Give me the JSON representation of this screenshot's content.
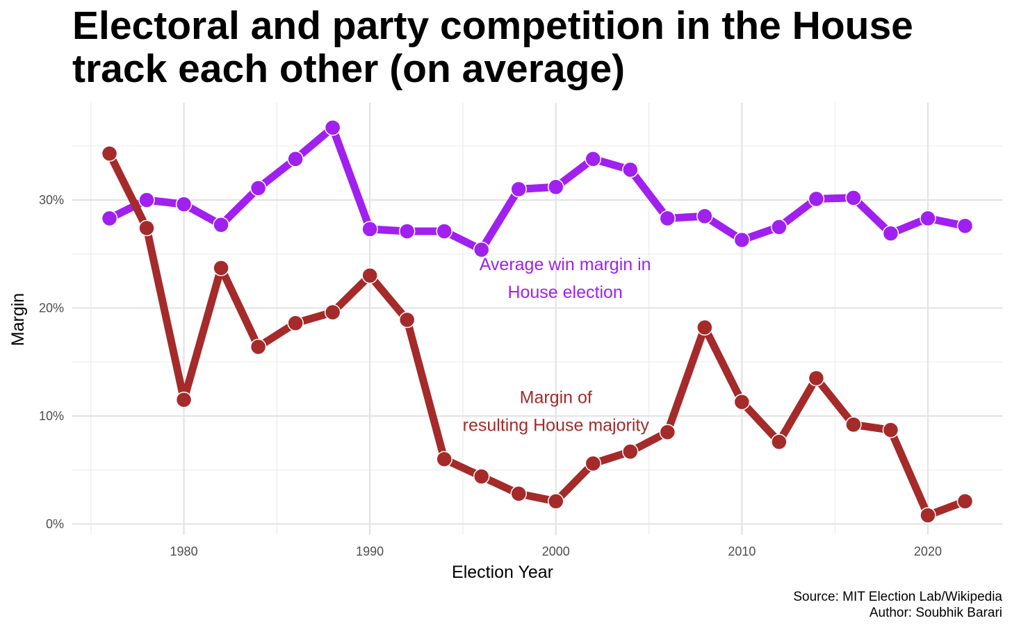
{
  "chart_data": {
    "type": "line",
    "title": "Electoral and party competition in the House track each other (on average)",
    "xlabel": "Election Year",
    "ylabel": "Margin",
    "xlim": [
      1974,
      2024
    ],
    "ylim": [
      -1,
      39
    ],
    "x_ticks": [
      1980,
      1990,
      2000,
      2010,
      2020
    ],
    "x_tick_labels": [
      "1980",
      "1990",
      "2000",
      "2010",
      "2020"
    ],
    "y_ticks": [
      0,
      10,
      20,
      30
    ],
    "y_tick_labels": [
      "0%",
      "10%",
      "20%",
      "30%"
    ],
    "grid": true,
    "legend": "none",
    "x": [
      1976,
      1978,
      1980,
      1982,
      1984,
      1986,
      1988,
      1990,
      1992,
      1994,
      1996,
      1998,
      2000,
      2002,
      2004,
      2006,
      2008,
      2010,
      2012,
      2014,
      2016,
      2018,
      2020,
      2022
    ],
    "series": [
      {
        "key": "win_margin",
        "color": "#A020F0",
        "values": [
          28.3,
          30.0,
          29.6,
          27.7,
          31.1,
          33.8,
          36.7,
          27.3,
          27.1,
          27.1,
          25.4,
          31.0,
          31.2,
          33.8,
          32.8,
          28.3,
          28.5,
          26.3,
          27.5,
          30.1,
          30.2,
          26.9,
          28.3,
          27.6
        ]
      },
      {
        "key": "majority_margin",
        "color": "#A52A2A",
        "values": [
          34.3,
          27.4,
          11.5,
          23.7,
          16.4,
          18.6,
          19.6,
          23.0,
          18.9,
          6.0,
          4.4,
          2.8,
          2.1,
          5.6,
          6.7,
          8.5,
          18.2,
          11.3,
          7.6,
          13.5,
          9.2,
          8.7,
          0.8,
          2.1
        ]
      }
    ],
    "annotations": [
      {
        "series": "win_margin",
        "lines": [
          "Average win margin in",
          "House election"
        ],
        "x": 2000.5,
        "y": 23.5,
        "color": "#A020F0"
      },
      {
        "series": "majority_margin",
        "lines": [
          "Margin of",
          "resulting House majority"
        ],
        "x": 2000,
        "y": 11.2,
        "color": "#A52A2A"
      }
    ]
  },
  "caption": {
    "source": "Source: MIT Election Lab/Wikipedia",
    "author": "Author: Soubhik Barari"
  }
}
